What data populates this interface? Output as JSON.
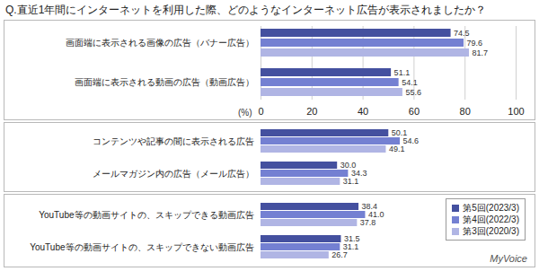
{
  "chart_data": {
    "type": "bar",
    "orientation": "horizontal",
    "title": "Q.直近1年間にインターネットを利用した際、どのようなインターネット広告が表示されましたか？",
    "x_label": "(%)",
    "categories": [
      "画面端に表示される画像の広告（バナー広告）",
      "画面端に表示される動画の広告（動画広告）",
      "コンテンツや記事の間に表示される広告",
      "メールマガジン内の広告（メール広告）",
      "YouTube等の動画サイトの、スキップできる動画広告",
      "YouTube等の動画サイトの、スキップできない動画広告"
    ],
    "series": [
      {
        "name": "第5回(2023/3)",
        "color": "#44509f",
        "values": [
          74.5,
          51.1,
          50.1,
          30.0,
          38.4,
          31.5
        ],
        "value_labels": [
          "74.5",
          "51.1",
          "50.1",
          "30.0",
          "38.4",
          "31.5"
        ]
      },
      {
        "name": "第4回(2022/3)",
        "color": "#7480d2",
        "values": [
          79.6,
          54.1,
          54.6,
          34.3,
          41.0,
          31.1
        ],
        "value_labels": [
          "79.6",
          "54.1",
          "54.6",
          "34.3",
          "41.0",
          "31.1"
        ]
      },
      {
        "name": "第3回(2020/3)",
        "color": "#b0b5e4",
        "values": [
          81.7,
          55.6,
          49.1,
          31.1,
          37.8,
          26.7
        ],
        "value_labels": [
          "81.7",
          "55.6",
          "49.1",
          "31.1",
          "37.8",
          "26.7"
        ]
      }
    ],
    "xlim": [
      0,
      100
    ],
    "xticks": [
      0,
      20,
      40,
      60,
      80,
      100
    ],
    "grid": true,
    "data_labels": true,
    "legend": "right",
    "annotations": [
      "MyVoice"
    ]
  }
}
